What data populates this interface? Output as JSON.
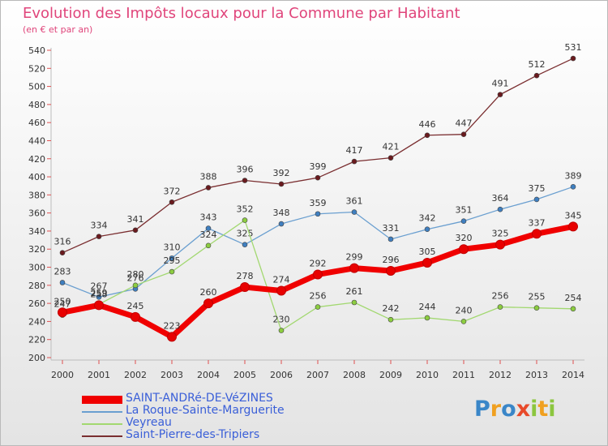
{
  "title": "Evolution des Impôts locaux pour la Commune par Habitant",
  "subtitle": "(en € et par an)",
  "logo": {
    "letters": [
      {
        "ch": "P",
        "color": "#3a86c8"
      },
      {
        "ch": "r",
        "color": "#f0a020"
      },
      {
        "ch": "o",
        "color": "#3a86c8"
      },
      {
        "ch": "x",
        "color": "#e84a2a"
      },
      {
        "ch": "i",
        "color": "#8cc63f"
      },
      {
        "ch": "t",
        "color": "#f0a020"
      },
      {
        "ch": "i",
        "color": "#8cc63f"
      }
    ]
  },
  "chart_data": {
    "type": "line",
    "title": "Evolution des Impôts locaux pour la Commune par Habitant",
    "subtitle": "(en € et par an)",
    "xlabel": "",
    "ylabel": "",
    "ylim": [
      200,
      540
    ],
    "ytick_step": 20,
    "grid": false,
    "legend_position": "bottom-left",
    "categories": [
      "2000",
      "2001",
      "2002",
      "2003",
      "2004",
      "2005",
      "2006",
      "2007",
      "2008",
      "2009",
      "2010",
      "2011",
      "2012",
      "2013",
      "2014"
    ],
    "series": [
      {
        "name": "Saint-Pierre-des-Tripiers",
        "color": "#7a2e30",
        "marker": "#6a1a1e",
        "width": 1.3,
        "values": [
          316,
          334,
          341,
          372,
          388,
          396,
          392,
          399,
          417,
          421,
          446,
          447,
          491,
          512,
          531
        ]
      },
      {
        "name": "La Roque-Sainte-Marguerite",
        "color": "#6a9fd0",
        "marker": "#3f7fc0",
        "width": 1.3,
        "values": [
          283,
          267,
          276,
          310,
          343,
          325,
          348,
          359,
          361,
          331,
          342,
          351,
          364,
          375,
          389
        ]
      },
      {
        "name": "Veyreau",
        "color": "#a2d870",
        "marker": "#8ccd40",
        "width": 1.3,
        "values": [
          247,
          259,
          280,
          295,
          324,
          352,
          230,
          256,
          261,
          242,
          244,
          240,
          256,
          255,
          254
        ]
      },
      {
        "name": "SAINT-ANDRé-DE-VéZINES",
        "color": "#f00000",
        "marker": "#e80000",
        "width": 7,
        "values": [
          250,
          258,
          245,
          223,
          260,
          278,
          274,
          292,
          299,
          296,
          305,
          320,
          325,
          337,
          345
        ]
      }
    ],
    "legend_order": [
      "SAINT-ANDRé-DE-VéZINES",
      "La Roque-Sainte-Marguerite",
      "Veyreau",
      "Saint-Pierre-des-Tripiers"
    ]
  }
}
